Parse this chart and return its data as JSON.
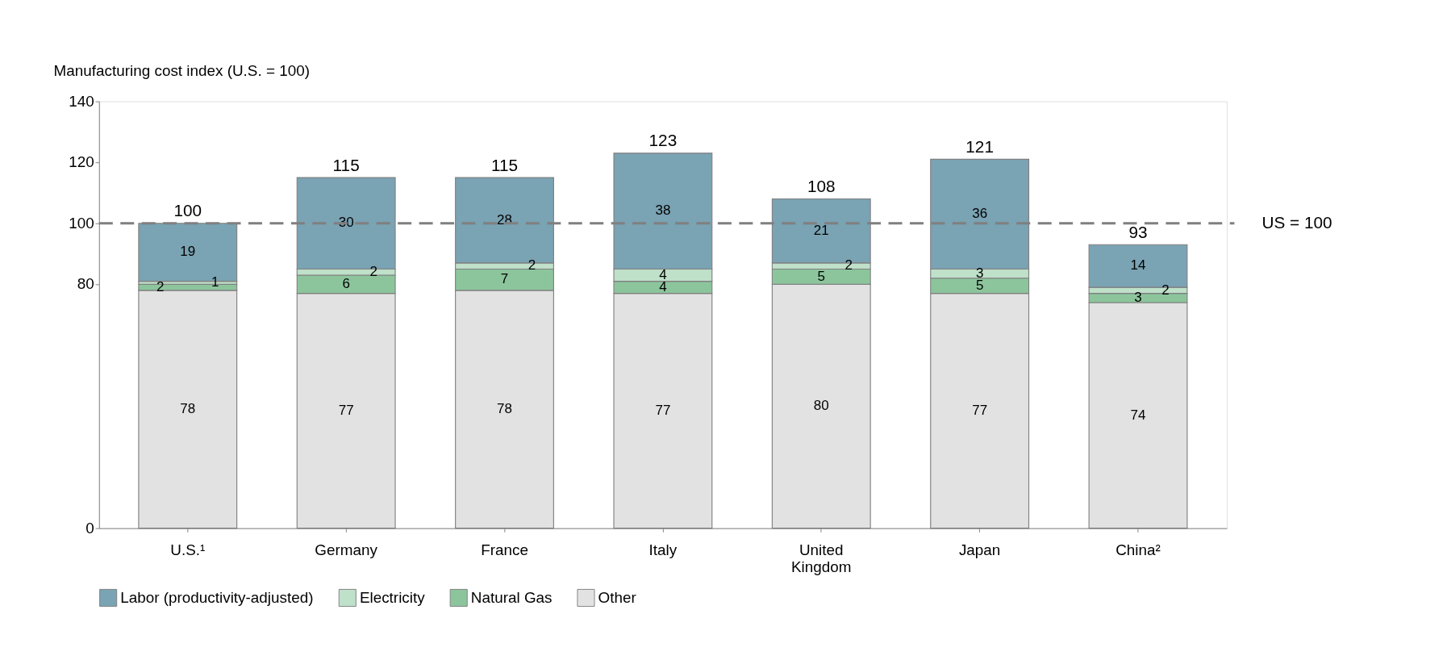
{
  "chart_data": {
    "type": "bar",
    "stacked": true,
    "ylabel": "Manufacturing cost index (U.S. = 100)",
    "categories": [
      "U.S.¹",
      "Germany",
      "France",
      "Italy",
      "United Kingdom",
      "Japan",
      "China²"
    ],
    "series": [
      {
        "name": "Other",
        "color": "#e2e2e2",
        "values": [
          78,
          77,
          78,
          77,
          80,
          77,
          74
        ]
      },
      {
        "name": "Natural Gas",
        "color": "#8cc59c",
        "values": [
          2,
          6,
          7,
          4,
          5,
          5,
          3
        ]
      },
      {
        "name": "Electricity",
        "color": "#bfe0c9",
        "values": [
          1,
          2,
          2,
          4,
          2,
          3,
          2
        ]
      },
      {
        "name": "Labor (productivity-adjusted)",
        "color": "#7aa3b3",
        "values": [
          19,
          30,
          28,
          38,
          21,
          36,
          14
        ]
      }
    ],
    "totals": [
      "100",
      "115",
      "115",
      "123",
      "108",
      "121",
      "93"
    ],
    "data_labels": true,
    "ylim": [
      0,
      140
    ],
    "yticks": [
      0,
      80,
      100,
      120,
      140
    ],
    "ref_lines": [
      {
        "axis": "y",
        "value": 100,
        "label": "US = 100",
        "color": "#808080",
        "line_style": "dashed"
      }
    ],
    "grid": false,
    "legend": "bottom"
  }
}
